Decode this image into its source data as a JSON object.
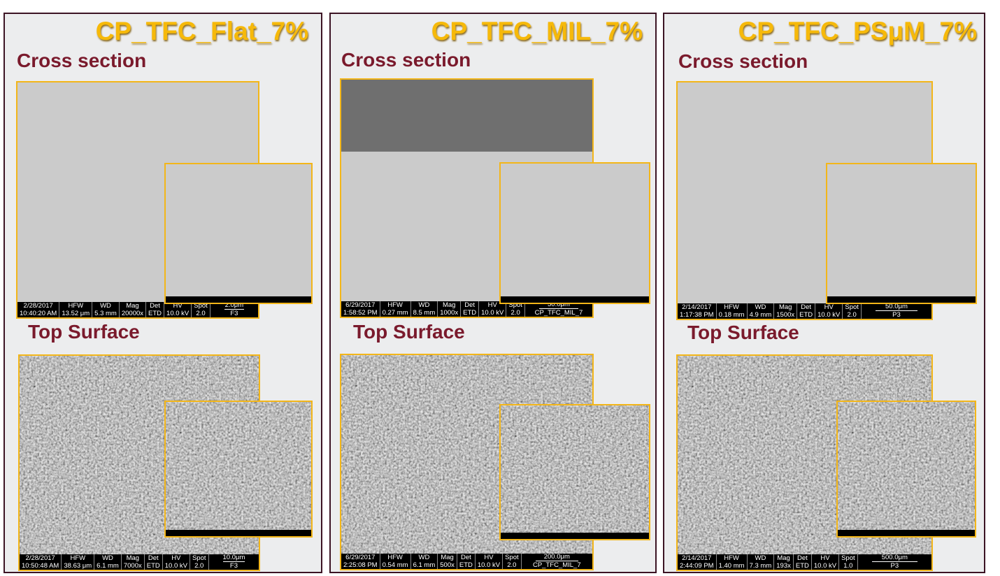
{
  "databar_headers": [
    "HFW",
    "WD",
    "Mag",
    "Det",
    "HV",
    "Spot"
  ],
  "panels": [
    {
      "title": "CP_TFC_Flat_7%",
      "sections": [
        {
          "label": "Cross section",
          "databar": {
            "date": "2/28/2017",
            "time": "10:40:20 AM",
            "values": [
              "13.52 μm",
              "5.3 mm",
              "20000x",
              "ETD",
              "10.0 kV",
              "2.0"
            ],
            "scale": "2.0μm",
            "name": "F3"
          }
        },
        {
          "label": "Top Surface",
          "databar": {
            "date": "2/28/2017",
            "time": "10:50:48 AM",
            "values": [
              "38.63 μm",
              "6.1 mm",
              "7000x",
              "ETD",
              "10.0 kV",
              "2.0"
            ],
            "scale": "10.0μm",
            "name": "F3"
          }
        }
      ]
    },
    {
      "title": "CP_TFC_MIL_7%",
      "sections": [
        {
          "label": "Cross section",
          "databar": {
            "date": "6/29/2017",
            "time": "1:58:52 PM",
            "values": [
              "0.27 mm",
              "8.5 mm",
              "1000x",
              "ETD",
              "10.0 kV",
              "2.0"
            ],
            "scale": "50.0μm",
            "name": "CP_TFC_MIL_7"
          }
        },
        {
          "label": "Top Surface",
          "databar": {
            "date": "6/29/2017",
            "time": "2:25:08 PM",
            "values": [
              "0.54 mm",
              "6.1 mm",
              "500x",
              "ETD",
              "10.0 kV",
              "2.0"
            ],
            "scale": "200.0μm",
            "name": "CP_TFC_MIL_7"
          }
        }
      ]
    },
    {
      "title": "CP_TFC_PSμM_7%",
      "sections": [
        {
          "label": "Cross section",
          "databar": {
            "date": "2/14/2017",
            "time": "1:17:38 PM",
            "values": [
              "0.18 mm",
              "4.9 mm",
              "1500x",
              "ETD",
              "10.0 kV",
              "2.0"
            ],
            "scale": "50.0μm",
            "name": "P3"
          }
        },
        {
          "label": "Top Surface",
          "databar": {
            "date": "2/14/2017",
            "time": "2:44:09 PM",
            "values": [
              "1.40 mm",
              "7.3 mm",
              "193x",
              "ETD",
              "10.0 kV",
              "1.0"
            ],
            "scale": "500.0μm",
            "name": "P3"
          }
        }
      ]
    }
  ]
}
